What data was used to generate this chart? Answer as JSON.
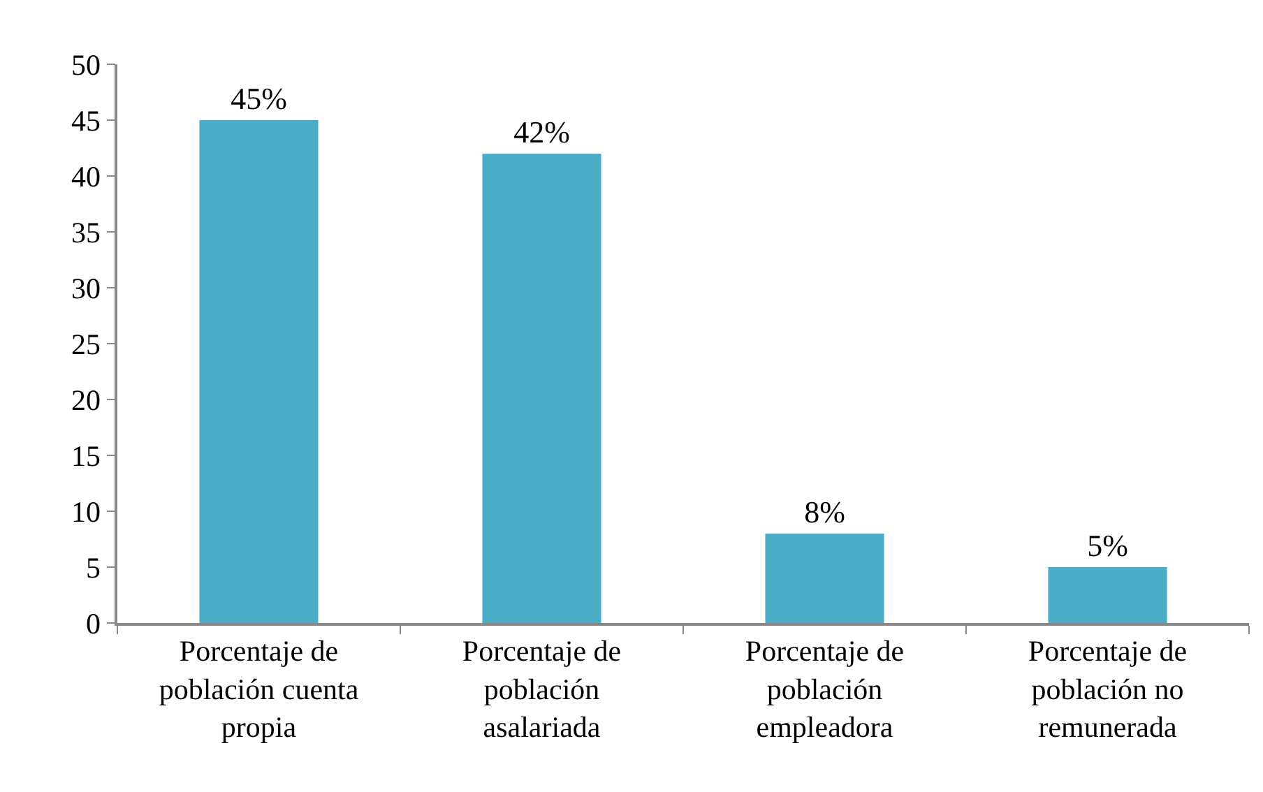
{
  "chart_data": {
    "type": "bar",
    "categories": [
      "Porcentaje de población cuenta propia",
      "Porcentaje de población asalariada",
      "Porcentaje de población empleadora",
      "Porcentaje de población no remunerada"
    ],
    "values": [
      45,
      42,
      8,
      5
    ],
    "value_labels": [
      "45%",
      "42%",
      "8%",
      "5%"
    ],
    "color": "#4bacc6",
    "ylim": [
      0,
      50
    ],
    "yticks": [
      0,
      5,
      10,
      15,
      20,
      25,
      30,
      35,
      40,
      45,
      50
    ],
    "grid": false
  }
}
